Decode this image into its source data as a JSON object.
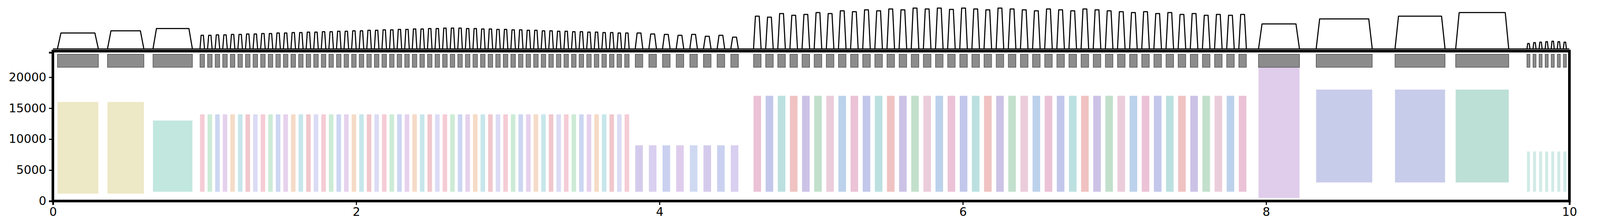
{
  "chart_data": {
    "type": "spectrogram",
    "xlim": [
      0,
      10
    ],
    "xticks": [
      0,
      2,
      4,
      6,
      8,
      10
    ],
    "ylim": [
      0,
      24000
    ],
    "yticks": [
      0,
      5000,
      10000,
      15000,
      20000
    ],
    "envelope_lim": [
      0,
      1
    ],
    "segments": {
      "onsets": [
        0.03,
        0.36,
        0.66,
        0.97,
        1.02,
        1.07,
        1.12,
        1.17,
        1.22,
        1.27,
        1.32,
        1.37,
        1.42,
        1.47,
        1.52,
        1.57,
        1.62,
        1.67,
        1.72,
        1.77,
        1.82,
        1.87,
        1.92,
        1.97,
        2.02,
        2.07,
        2.12,
        2.17,
        2.22,
        2.27,
        2.32,
        2.37,
        2.42,
        2.47,
        2.52,
        2.57,
        2.62,
        2.67,
        2.72,
        2.77,
        2.82,
        2.87,
        2.92,
        2.97,
        3.02,
        3.07,
        3.12,
        3.17,
        3.22,
        3.27,
        3.32,
        3.37,
        3.42,
        3.47,
        3.52,
        3.57,
        3.62,
        3.67,
        3.72,
        3.77,
        3.84,
        3.93,
        4.02,
        4.11,
        4.2,
        4.29,
        4.38,
        4.47,
        4.62,
        4.7,
        4.78,
        4.86,
        4.94,
        5.02,
        5.1,
        5.18,
        5.26,
        5.34,
        5.42,
        5.5,
        5.58,
        5.66,
        5.74,
        5.82,
        5.9,
        5.98,
        6.06,
        6.14,
        6.22,
        6.3,
        6.38,
        6.46,
        6.54,
        6.62,
        6.7,
        6.78,
        6.86,
        6.94,
        7.02,
        7.1,
        7.18,
        7.26,
        7.34,
        7.42,
        7.5,
        7.58,
        7.66,
        7.74,
        7.82,
        7.95,
        8.33,
        8.85,
        9.25,
        9.72,
        9.76,
        9.8,
        9.84,
        9.88,
        9.92,
        9.96
      ],
      "offsets": [
        0.3,
        0.6,
        0.92,
        1.0,
        1.05,
        1.1,
        1.15,
        1.2,
        1.25,
        1.3,
        1.35,
        1.4,
        1.45,
        1.5,
        1.55,
        1.6,
        1.65,
        1.7,
        1.75,
        1.8,
        1.85,
        1.9,
        1.95,
        2.0,
        2.05,
        2.1,
        2.15,
        2.2,
        2.25,
        2.3,
        2.35,
        2.4,
        2.45,
        2.5,
        2.55,
        2.6,
        2.65,
        2.7,
        2.75,
        2.8,
        2.85,
        2.9,
        2.95,
        3.0,
        3.05,
        3.1,
        3.15,
        3.2,
        3.25,
        3.3,
        3.35,
        3.4,
        3.45,
        3.5,
        3.55,
        3.6,
        3.65,
        3.7,
        3.75,
        3.8,
        3.89,
        3.98,
        4.07,
        4.16,
        4.25,
        4.34,
        4.43,
        4.52,
        4.67,
        4.75,
        4.83,
        4.91,
        4.99,
        5.07,
        5.15,
        5.23,
        5.31,
        5.39,
        5.47,
        5.55,
        5.63,
        5.71,
        5.79,
        5.87,
        5.95,
        6.03,
        6.11,
        6.19,
        6.27,
        6.35,
        6.43,
        6.51,
        6.59,
        6.67,
        6.75,
        6.83,
        6.91,
        6.99,
        7.07,
        7.15,
        7.23,
        7.31,
        7.39,
        7.47,
        7.55,
        7.63,
        7.71,
        7.79,
        7.87,
        8.22,
        8.7,
        9.18,
        9.6,
        9.74,
        9.78,
        9.82,
        9.86,
        9.9,
        9.94,
        9.98
      ],
      "colors": [
        "#c8b84a",
        "#c8b84a",
        "#3fb59a",
        "#e06080",
        "#60c080",
        "#6080d8",
        "#b070c8",
        "#e09050",
        "#50b0c0",
        "#d05060",
        "#9090e0",
        "#e06080",
        "#60c080",
        "#6080d8",
        "#b070c8",
        "#e09050",
        "#50b0c0",
        "#d05060",
        "#9090e0",
        "#e06080",
        "#60c080",
        "#6080d8",
        "#b070c8",
        "#e09050",
        "#50b0c0",
        "#d05060",
        "#9090e0",
        "#e06080",
        "#60c080",
        "#6080d8",
        "#b070c8",
        "#e09050",
        "#50b0c0",
        "#d05060",
        "#9090e0",
        "#e06080",
        "#60c080",
        "#6080d8",
        "#b070c8",
        "#e09050",
        "#50b0c0",
        "#d05060",
        "#9090e0",
        "#e06080",
        "#60c080",
        "#6080d8",
        "#b070c8",
        "#e09050",
        "#50b0c0",
        "#d05060",
        "#9090e0",
        "#e06080",
        "#60c080",
        "#6080d8",
        "#b070c8",
        "#e09050",
        "#50b0c0",
        "#d05060",
        "#9090e0",
        "#e06080",
        "#7a5cc4",
        "#8a6ad0",
        "#5a70d0",
        "#9a60c8",
        "#6a8ad8",
        "#7a5cc4",
        "#5a70d0",
        "#8a6ad0",
        "#c04080",
        "#4050c0",
        "#30a0a0",
        "#d04040",
        "#6040b0",
        "#40a060",
        "#c06090",
        "#3070c0",
        "#c04080",
        "#4050c0",
        "#30a0a0",
        "#d04040",
        "#6040b0",
        "#40a060",
        "#c06090",
        "#3070c0",
        "#c04080",
        "#4050c0",
        "#30a0a0",
        "#d04040",
        "#6040b0",
        "#40a060",
        "#c06090",
        "#3070c0",
        "#c04080",
        "#4050c0",
        "#30a0a0",
        "#d04040",
        "#6040b0",
        "#40a060",
        "#c06090",
        "#3070c0",
        "#c04080",
        "#4050c0",
        "#30a0a0",
        "#d04040",
        "#6040b0",
        "#40a060",
        "#c06090",
        "#3070c0",
        "#c04080",
        "#a060c0",
        "#5060c0",
        "#5060c0",
        "#30a080",
        "#70c0b0",
        "#70c0b0",
        "#70c0b0",
        "#70c0b0",
        "#70c0b0",
        "#70c0b0",
        "#70c0b0"
      ],
      "f_low": [
        1200,
        1200,
        1500,
        1500,
        1500,
        1500,
        1500,
        1500,
        1500,
        1500,
        1500,
        1500,
        1500,
        1500,
        1500,
        1500,
        1500,
        1500,
        1500,
        1500,
        1500,
        1500,
        1500,
        1500,
        1500,
        1500,
        1500,
        1500,
        1500,
        1500,
        1500,
        1500,
        1500,
        1500,
        1500,
        1500,
        1500,
        1500,
        1500,
        1500,
        1500,
        1500,
        1500,
        1500,
        1500,
        1500,
        1500,
        1500,
        1500,
        1500,
        1500,
        1500,
        1500,
        1500,
        1500,
        1500,
        1500,
        1500,
        1500,
        1500,
        1500,
        1500,
        1500,
        1500,
        1500,
        1500,
        1500,
        1500,
        1500,
        1500,
        1500,
        1500,
        1500,
        1500,
        1500,
        1500,
        1500,
        1500,
        1500,
        1500,
        1500,
        1500,
        1500,
        1500,
        1500,
        1500,
        1500,
        1500,
        1500,
        1500,
        1500,
        1500,
        1500,
        1500,
        1500,
        1500,
        1500,
        1500,
        1500,
        1500,
        1500,
        1500,
        1500,
        1500,
        1500,
        1500,
        1500,
        1500,
        1500,
        500,
        3000,
        3000,
        3000,
        1500,
        1500,
        1500,
        1500,
        1500,
        1500,
        1500
      ],
      "f_high": [
        16000,
        16000,
        13000,
        14000,
        14000,
        14000,
        14000,
        14000,
        14000,
        14000,
        14000,
        14000,
        14000,
        14000,
        14000,
        14000,
        14000,
        14000,
        14000,
        14000,
        14000,
        14000,
        14000,
        14000,
        14000,
        14000,
        14000,
        14000,
        14000,
        14000,
        14000,
        14000,
        14000,
        14000,
        14000,
        14000,
        14000,
        14000,
        14000,
        14000,
        14000,
        14000,
        14000,
        14000,
        14000,
        14000,
        14000,
        14000,
        14000,
        14000,
        14000,
        14000,
        14000,
        14000,
        14000,
        14000,
        14000,
        14000,
        14000,
        14000,
        9000,
        9000,
        9000,
        9000,
        9000,
        9000,
        9000,
        9000,
        17000,
        17000,
        17000,
        17000,
        17000,
        17000,
        17000,
        17000,
        17000,
        17000,
        17000,
        17000,
        17000,
        17000,
        17000,
        17000,
        17000,
        17000,
        17000,
        17000,
        17000,
        17000,
        17000,
        17000,
        17000,
        17000,
        17000,
        17000,
        17000,
        17000,
        17000,
        17000,
        17000,
        17000,
        17000,
        17000,
        17000,
        17000,
        17000,
        17000,
        17000,
        22000,
        18000,
        18000,
        18000,
        8000,
        8000,
        8000,
        8000,
        8000,
        8000,
        8000
      ],
      "amplitude": [
        0.35,
        0.4,
        0.45,
        0.3,
        0.3,
        0.31,
        0.31,
        0.32,
        0.32,
        0.33,
        0.33,
        0.34,
        0.34,
        0.35,
        0.35,
        0.36,
        0.36,
        0.37,
        0.37,
        0.38,
        0.38,
        0.39,
        0.39,
        0.4,
        0.4,
        0.41,
        0.41,
        0.42,
        0.42,
        0.43,
        0.43,
        0.44,
        0.44,
        0.45,
        0.45,
        0.46,
        0.46,
        0.46,
        0.45,
        0.45,
        0.44,
        0.44,
        0.43,
        0.43,
        0.42,
        0.42,
        0.41,
        0.41,
        0.4,
        0.4,
        0.39,
        0.39,
        0.38,
        0.38,
        0.37,
        0.37,
        0.36,
        0.36,
        0.35,
        0.35,
        0.35,
        0.33,
        0.32,
        0.3,
        0.32,
        0.28,
        0.3,
        0.26,
        0.72,
        0.7,
        0.78,
        0.74,
        0.76,
        0.8,
        0.78,
        0.84,
        0.82,
        0.86,
        0.84,
        0.88,
        0.86,
        0.9,
        0.88,
        0.9,
        0.87,
        0.9,
        0.88,
        0.86,
        0.9,
        0.88,
        0.86,
        0.84,
        0.88,
        0.86,
        0.84,
        0.88,
        0.86,
        0.84,
        0.82,
        0.8,
        0.82,
        0.78,
        0.8,
        0.76,
        0.78,
        0.74,
        0.76,
        0.74,
        0.76,
        0.55,
        0.66,
        0.72,
        0.8,
        0.12,
        0.14,
        0.15,
        0.16,
        0.17,
        0.16,
        0.15
      ]
    }
  }
}
